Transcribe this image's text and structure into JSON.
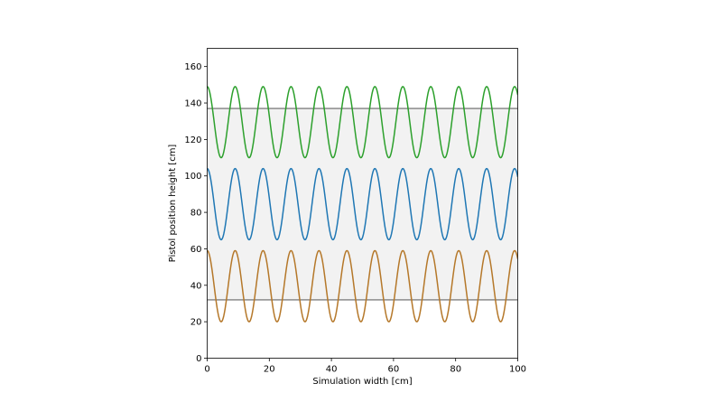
{
  "chart_data": {
    "type": "line",
    "title": "",
    "xlabel": "Simulation width [cm]",
    "ylabel": "Pistol position height [cm]",
    "xlim": [
      0,
      100
    ],
    "ylim": [
      0,
      170
    ],
    "xticks": [
      0,
      20,
      40,
      60,
      80,
      100
    ],
    "yticks": [
      0,
      20,
      40,
      60,
      80,
      100,
      120,
      140,
      160
    ],
    "grid": false,
    "legend": "none",
    "band": {
      "y_from": 32,
      "y_to": 137,
      "color": "#f2f2f2"
    },
    "hlines": [
      {
        "name": "upper-boundary",
        "y": 137,
        "color": "#666666"
      },
      {
        "name": "lower-boundary",
        "y": 32,
        "color": "#666666"
      }
    ],
    "series": [
      {
        "name": "top-wave",
        "color": "#2ca02c",
        "center": 129.5,
        "amplitude": 19.5,
        "period": 9,
        "phase_deg": 90,
        "x_range": [
          0,
          100
        ]
      },
      {
        "name": "middle-wave",
        "color": "#1f77b4",
        "center": 84.5,
        "amplitude": 19.5,
        "period": 9,
        "phase_deg": 90,
        "x_range": [
          0,
          100
        ]
      },
      {
        "name": "bottom-wave",
        "color": "#b5782a",
        "center": 39.5,
        "amplitude": 19.5,
        "period": 9,
        "phase_deg": 90,
        "x_range": [
          0,
          100
        ]
      }
    ]
  }
}
